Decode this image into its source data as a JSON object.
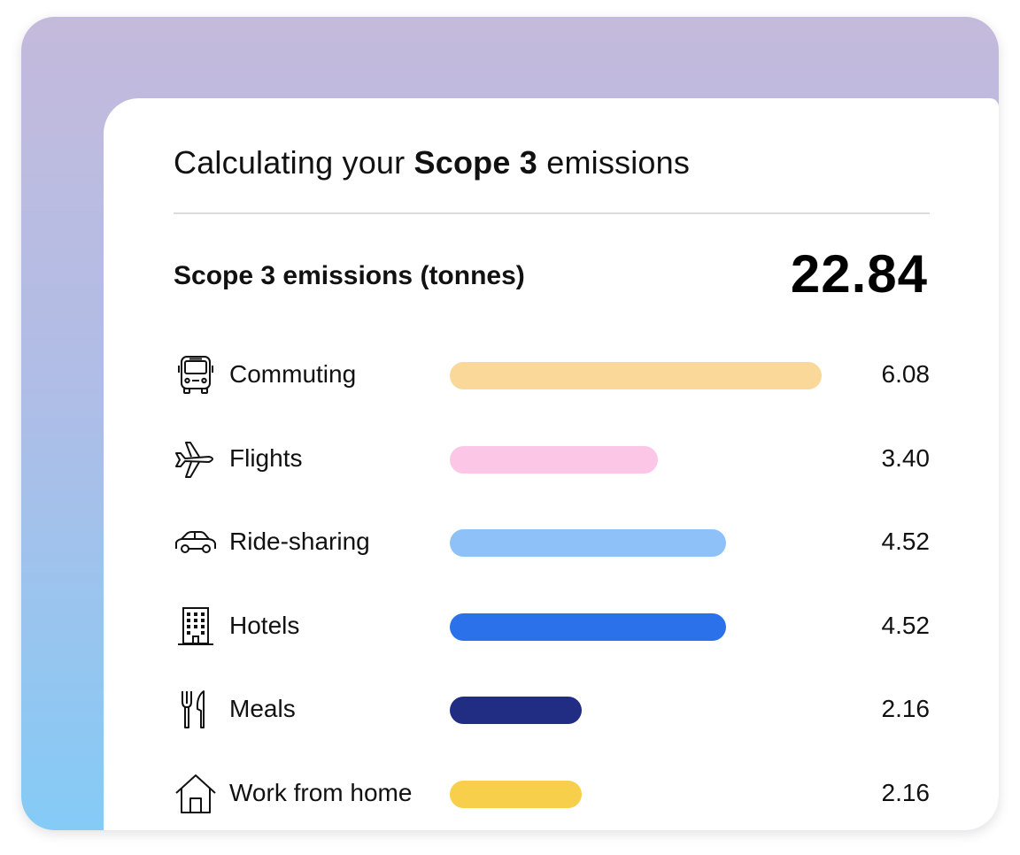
{
  "card": {
    "heading_prefix": "Calculating your ",
    "heading_bold": "Scope 3",
    "heading_suffix": " emissions",
    "total_label": "Scope 3 emissions (tonnes)",
    "total_value": "22.84"
  },
  "chart_data": {
    "type": "bar",
    "orientation": "horizontal",
    "title": "Scope 3 emissions (tonnes)",
    "total": 22.84,
    "categories": [
      "Commuting",
      "Flights",
      "Ride-sharing",
      "Hotels",
      "Meals",
      "Work from home"
    ],
    "values": [
      6.08,
      3.4,
      4.52,
      4.52,
      2.16,
      2.16
    ],
    "value_labels": [
      "6.08",
      "3.40",
      "4.52",
      "4.52",
      "2.16",
      "2.16"
    ],
    "icons": [
      "bus-icon",
      "airplane-icon",
      "car-icon",
      "hotel-building-icon",
      "fork-knife-icon",
      "house-icon"
    ],
    "colors": [
      "#f9d899",
      "#fcc7e6",
      "#8fc1f9",
      "#2a71ea",
      "#212d82",
      "#f8cf4a"
    ],
    "xlim": [
      0,
      6.08
    ],
    "grid": false,
    "legend": "none"
  }
}
